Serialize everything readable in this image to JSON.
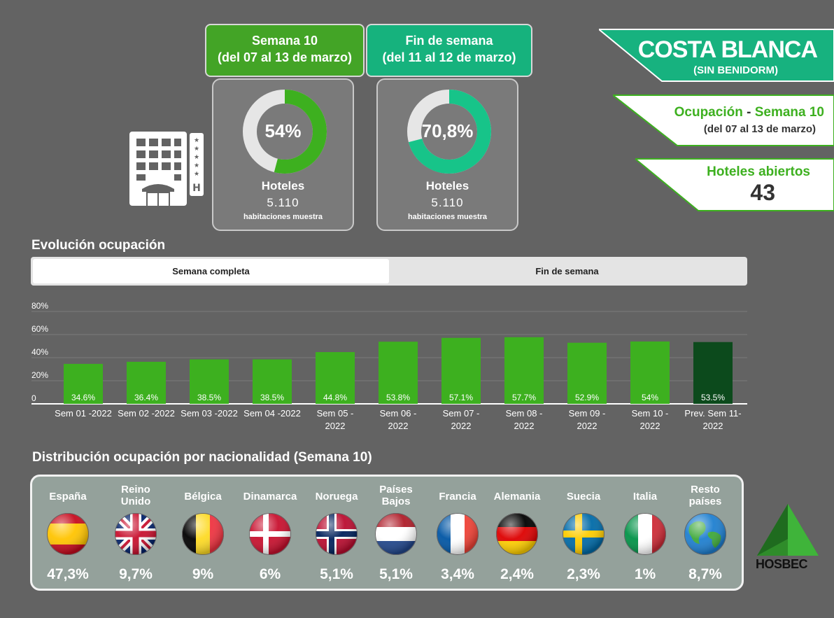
{
  "header": {
    "week": {
      "line1": "Semana 10",
      "line2": "(del 07 al 13 de marzo)"
    },
    "weekend": {
      "line1": "Fin de semana",
      "line2": "(del 11 al 12 de marzo)"
    }
  },
  "donuts": [
    {
      "pct_label": "54%",
      "value": 54,
      "color": "#3db01f",
      "label": "Hoteles",
      "num": "5.110",
      "sub": "habitaciones muestra"
    },
    {
      "pct_label": "70,8%",
      "value": 70.8,
      "color": "#17c489",
      "label": "Hoteles",
      "num": "5.110",
      "sub": "habitaciones muestra"
    }
  ],
  "region": {
    "title": "COSTA BLANCA",
    "subtitle": "(SIN BENIDORM)"
  },
  "occupancy_panel": {
    "label_a": "Ocupación",
    "dash": " - ",
    "label_b": "Semana 10",
    "dates": "(del 07 al 13 de marzo)"
  },
  "hotels_panel": {
    "label": "Hoteles abiertos",
    "value": "43"
  },
  "evolution": {
    "title": "Evolución ocupación",
    "tabs": [
      "Semana completa",
      "Fin de semana"
    ]
  },
  "chart_data": {
    "type": "bar",
    "categories": [
      [
        "Sem 01 -2022"
      ],
      [
        "Sem 02 -2022"
      ],
      [
        "Sem 03 -2022"
      ],
      [
        "Sem 04 -2022"
      ],
      [
        "Sem 05 -",
        "2022"
      ],
      [
        "Sem 06 -",
        "2022"
      ],
      [
        "Sem 07 -",
        "2022"
      ],
      [
        "Sem 08 -",
        "2022"
      ],
      [
        "Sem 09 -",
        "2022"
      ],
      [
        "Sem 10 -",
        "2022"
      ],
      [
        "Prev. Sem 11-",
        "2022"
      ]
    ],
    "values": [
      34.6,
      36.4,
      38.5,
      38.5,
      44.8,
      53.8,
      57.1,
      57.7,
      52.9,
      54,
      53.5
    ],
    "value_labels": [
      "34.6%",
      "36.4%",
      "38.5%",
      "38.5%",
      "44.8%",
      "53.8%",
      "57.1%",
      "57.7%",
      "52.9%",
      "54%",
      "53.5%"
    ],
    "colors": [
      "#3db01f",
      "#3db01f",
      "#3db01f",
      "#3db01f",
      "#3db01f",
      "#3db01f",
      "#3db01f",
      "#3db01f",
      "#3db01f",
      "#3db01f",
      "#0c4a1c"
    ],
    "yticks": [
      "0",
      "20%",
      "40%",
      "60%",
      "80%"
    ],
    "ylim": [
      0,
      80
    ],
    "grid": true
  },
  "nationality": {
    "title": "Distribución ocupación por nacionalidad (Semana 10)",
    "items": [
      {
        "name": [
          "España"
        ],
        "pct": "47,3%",
        "flag": "spain-flag-icon"
      },
      {
        "name": [
          "Reino",
          "Unido"
        ],
        "pct": "9,7%",
        "flag": "uk-flag-icon"
      },
      {
        "name": [
          "Bélgica"
        ],
        "pct": "9%",
        "flag": "belgium-flag-icon"
      },
      {
        "name": [
          "Dinamarca"
        ],
        "pct": "6%",
        "flag": "denmark-flag-icon"
      },
      {
        "name": [
          "Noruega"
        ],
        "pct": "5,1%",
        "flag": "norway-flag-icon"
      },
      {
        "name": [
          "Países",
          "Bajos"
        ],
        "pct": "5,1%",
        "flag": "netherlands-flag-icon"
      },
      {
        "name": [
          "Francia"
        ],
        "pct": "3,4%",
        "flag": "france-flag-icon"
      },
      {
        "name": [
          "Alemania"
        ],
        "pct": "2,4%",
        "flag": "germany-flag-icon"
      },
      {
        "name": [
          "Suecia"
        ],
        "pct": "2,3%",
        "flag": "sweden-flag-icon"
      },
      {
        "name": [
          "Italia"
        ],
        "pct": "1%",
        "flag": "italy-flag-icon"
      },
      {
        "name": [
          "Resto",
          "países"
        ],
        "pct": "8,7%",
        "flag": "globe-icon"
      }
    ]
  },
  "logo": {
    "text": "HOSBEC"
  },
  "colors": {
    "green": "#3db01f",
    "teal": "#17c489",
    "dark_green": "#0c4a1c",
    "background": "#636363"
  }
}
